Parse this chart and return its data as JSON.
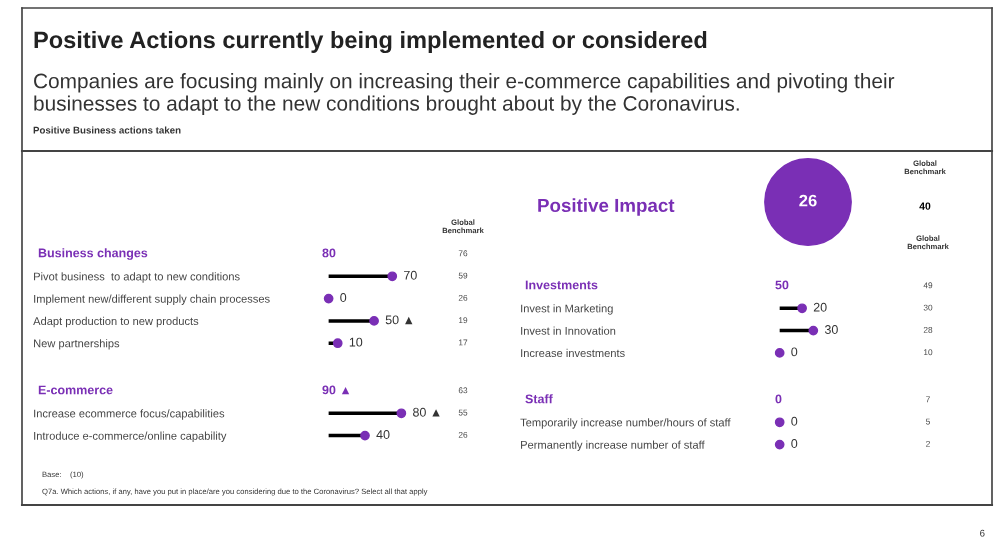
{
  "chart_data": [
    {
      "type": "other",
      "title": "Positive Actions currently being implemented or considered",
      "subtitle": "Companies are focusing mainly on increasing their e-commerce capabilities and pivoting their businesses to adapt to the new conditions brought about by the Coronavirus.",
      "annotations": [
        "Positive Business actions taken",
        "Base:    (10)",
        "Q7a. Which actions, if any, have you put in place/are you considering due to the Coronavirus? Select all that apply",
        "6"
      ]
    },
    {
      "type": "lollipop",
      "orientation": "horizontal",
      "title": "Business changes",
      "tick_labels": "y",
      "categories": [
        "Pivot business  to adapt to new conditions",
        "Implement new/different supply chain processes",
        "Adapt production to new products",
        "New partnerships"
      ],
      "series": [
        {
          "color": "#7a2fb5",
          "values": [
            70,
            0,
            50,
            10
          ],
          "value_labels": [
            "70",
            "0",
            "50 ▲",
            "10"
          ]
        }
      ],
      "annotations": [
        "80",
        "76",
        "59",
        "26",
        "19",
        "17",
        "Global Benchmark"
      ]
    },
    {
      "type": "lollipop",
      "orientation": "horizontal",
      "title": "E-commerce",
      "tick_labels": "y",
      "categories": [
        "Increase ecommerce focus/capabilities",
        "Introduce e-commerce/online capability"
      ],
      "series": [
        {
          "color": "#7a2fb5",
          "values": [
            80,
            40
          ],
          "value_labels": [
            "80 ▲",
            "40"
          ]
        }
      ],
      "annotations": [
        "90 ▲",
        "63",
        "55",
        "26"
      ]
    },
    {
      "type": "other",
      "title": "Positive Impact",
      "annotations": [
        "26",
        "Global Benchmark",
        "40"
      ]
    },
    {
      "type": "lollipop",
      "orientation": "horizontal",
      "title": "Investments",
      "tick_labels": "y",
      "categories": [
        "Invest in Marketing",
        "Invest in Innovation",
        "Increase investments"
      ],
      "series": [
        {
          "color": "#7a2fb5",
          "values": [
            20,
            30,
            0
          ],
          "value_labels": [
            "20",
            "30",
            "0"
          ]
        }
      ],
      "annotations": [
        "50",
        "49",
        "30",
        "28",
        "10",
        "Global Benchmark"
      ]
    },
    {
      "type": "other",
      "title": "Staff",
      "categories": [
        "Temporarily increase number/hours of staff",
        "Permanently increase number of staff"
      ],
      "series": [
        {
          "color": "#7a2fb5",
          "values": [
            0,
            0
          ],
          "value_labels": [
            "0",
            "0"
          ]
        }
      ],
      "annotations": [
        "0",
        "7",
        "5",
        "2"
      ]
    }
  ]
}
